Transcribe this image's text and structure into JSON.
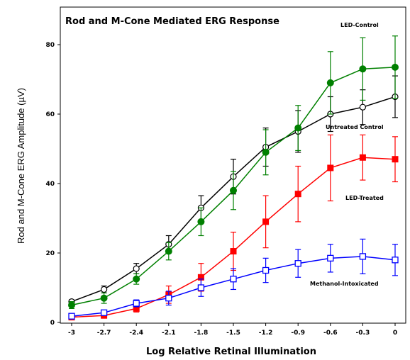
{
  "chart_data": {
    "type": "line",
    "title": "Rod and M-Cone Mediated ERG Response",
    "xlabel": "Log Relative Retinal Illumination",
    "ylabel": "Rod and M-Cone ERG Amplitude (µV)",
    "x": [
      -3,
      -2.7,
      -2.4,
      -2.1,
      -1.8,
      -1.5,
      -1.2,
      -0.9,
      -0.6,
      -0.3,
      0
    ],
    "x_tick_labels": [
      "-3",
      "-2.7",
      "-2.4",
      "-2.1",
      "-1.8",
      "-1.5",
      "-1.2",
      "-0.9",
      "-0.6",
      "-0.3",
      "0"
    ],
    "xlim": [
      -3.15,
      0.15
    ],
    "ylim": [
      0,
      90
    ],
    "y_ticks": [
      0,
      20,
      40,
      60,
      80
    ],
    "grid": false,
    "series": [
      {
        "name": "LED-Control",
        "color": "#008000",
        "marker": "filled-circle",
        "values": [
          5,
          7,
          12.5,
          20.5,
          29,
          38,
          49,
          56,
          69,
          73,
          73.5
        ],
        "errors": [
          1,
          1.5,
          1.5,
          2.5,
          4,
          5.5,
          6.5,
          6.5,
          9,
          9,
          9
        ]
      },
      {
        "name": "Untreated Control",
        "color": "#000000",
        "marker": "open-circle",
        "values": [
          6,
          9.5,
          15.5,
          22.5,
          33,
          42,
          50.5,
          55,
          60,
          62,
          65
        ],
        "errors": [
          0.5,
          1,
          1.5,
          2.5,
          3.5,
          5,
          5.5,
          6,
          5,
          5,
          6
        ]
      },
      {
        "name": "LED-Treated",
        "color": "#ff0000",
        "marker": "filled-square",
        "values": [
          1.5,
          2,
          4,
          8,
          13,
          20.5,
          29,
          37,
          44.5,
          47.5,
          47
        ],
        "errors": [
          0.5,
          0.5,
          1,
          2.5,
          4,
          5.5,
          7.5,
          8,
          9.5,
          6.5,
          6.5
        ]
      },
      {
        "name": "Methanol-Intoxicated",
        "color": "#0000ff",
        "marker": "open-square",
        "values": [
          1.8,
          2.8,
          5.5,
          7,
          10,
          12.5,
          15,
          17,
          18.5,
          19,
          18
        ],
        "errors": [
          0.3,
          0.5,
          1,
          2,
          2.5,
          3,
          3.5,
          4,
          4,
          5,
          4.5
        ]
      }
    ]
  }
}
